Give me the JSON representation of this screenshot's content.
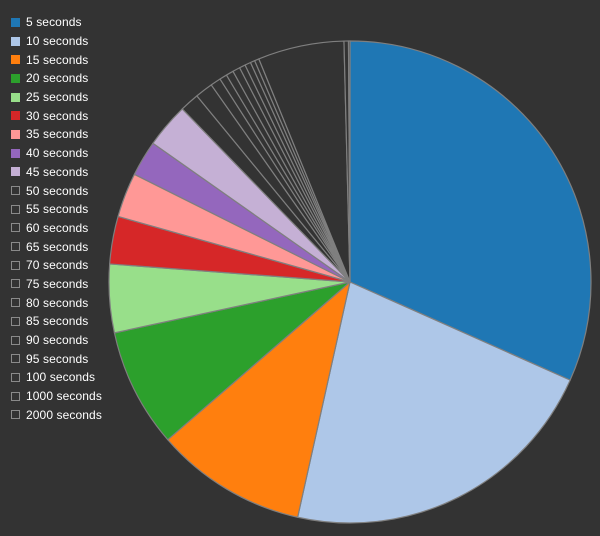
{
  "chart_data": {
    "type": "pie",
    "title": "",
    "start_angle_deg": 0,
    "direction": "clockwise",
    "slice_border_color": "#7f7f7f",
    "background": "#333333",
    "slices": [
      {
        "label": "5 seconds",
        "value": 31.8,
        "color": "#1f77b4",
        "filled": true
      },
      {
        "label": "10 seconds",
        "value": 21.9,
        "color": "#aec7e8",
        "filled": true
      },
      {
        "label": "15 seconds",
        "value": 10.2,
        "color": "#ff7f0e",
        "filled": true
      },
      {
        "label": "20 seconds",
        "value": 8.0,
        "color": "#2ca02c",
        "filled": true
      },
      {
        "label": "25 seconds",
        "value": 4.6,
        "color": "#98df8a",
        "filled": true
      },
      {
        "label": "30 seconds",
        "value": 3.2,
        "color": "#d62728",
        "filled": true
      },
      {
        "label": "35 seconds",
        "value": 3.0,
        "color": "#ff9896",
        "filled": true
      },
      {
        "label": "40 seconds",
        "value": 2.4,
        "color": "#9467bd",
        "filled": true
      },
      {
        "label": "45 seconds",
        "value": 3.0,
        "color": "#c5b0d5",
        "filled": true
      },
      {
        "label": "50 seconds",
        "value": 1.3,
        "color": "#333333",
        "filled": false
      },
      {
        "label": "55 seconds",
        "value": 1.2,
        "color": "#333333",
        "filled": false
      },
      {
        "label": "60 seconds",
        "value": 0.7,
        "color": "#333333",
        "filled": false
      },
      {
        "label": "65 seconds",
        "value": 0.5,
        "color": "#333333",
        "filled": false
      },
      {
        "label": "70 seconds",
        "value": 0.5,
        "color": "#333333",
        "filled": false
      },
      {
        "label": "75 seconds",
        "value": 0.5,
        "color": "#333333",
        "filled": false
      },
      {
        "label": "80 seconds",
        "value": 0.4,
        "color": "#333333",
        "filled": false
      },
      {
        "label": "85 seconds",
        "value": 0.4,
        "color": "#333333",
        "filled": false
      },
      {
        "label": "90 seconds",
        "value": 0.3,
        "color": "#333333",
        "filled": false
      },
      {
        "label": "95 seconds",
        "value": 0.3,
        "color": "#333333",
        "filled": false
      },
      {
        "label": "100 seconds",
        "value": 5.8,
        "color": "#333333",
        "filled": false
      },
      {
        "label": "1000 seconds",
        "value": 0.3,
        "color": "#333333",
        "filled": false
      },
      {
        "label": "2000 seconds",
        "value": 0.1,
        "color": "#333333",
        "filled": false
      }
    ]
  }
}
